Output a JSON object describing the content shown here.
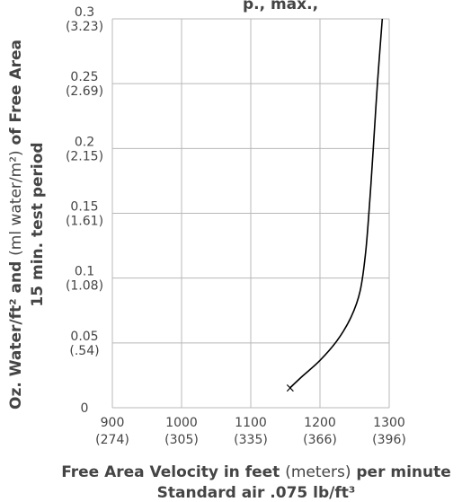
{
  "chart_data": {
    "type": "line",
    "title_fragment": "p., max.,",
    "xlabel": {
      "line1_bold_a": "Free Area Velocity in feet ",
      "line1_light": "(meters)",
      "line1_bold_b": " per minute",
      "line2": "Standard air .075 lb/ft³"
    },
    "ylabel": {
      "line1_bold_a": "Oz. Water/ft² and ",
      "line1_light": "(ml water/m²)",
      "line1_bold_b": " of Free Area",
      "line2": "15 min. test period"
    },
    "xlim": [
      900,
      1300
    ],
    "ylim": [
      0,
      0.3
    ],
    "grid": true,
    "x_ticks": [
      {
        "value": 900,
        "label": "900",
        "sublabel": "(274)"
      },
      {
        "value": 1000,
        "label": "1000",
        "sublabel": "(305)"
      },
      {
        "value": 1100,
        "label": "1100",
        "sublabel": "(335)"
      },
      {
        "value": 1200,
        "label": "1200",
        "sublabel": "(366)"
      },
      {
        "value": 1300,
        "label": "1300",
        "sublabel": "(396)"
      }
    ],
    "y_ticks": [
      {
        "value": 0.3,
        "label": "0.3",
        "sublabel": "(3.23)"
      },
      {
        "value": 0.25,
        "label": "0.25",
        "sublabel": "(2.69)"
      },
      {
        "value": 0.2,
        "label": "0.2",
        "sublabel": "(2.15)"
      },
      {
        "value": 0.15,
        "label": "0.15",
        "sublabel": "(1.61)"
      },
      {
        "value": 0.1,
        "label": "0.1",
        "sublabel": "(1.08)"
      },
      {
        "value": 0.05,
        "label": "0.05",
        "sublabel": "(.54)"
      },
      {
        "value": 0,
        "label": "0",
        "sublabel": ""
      }
    ],
    "series": [
      {
        "x": [
          1157,
          1175,
          1200,
          1225,
          1245,
          1258,
          1266,
          1272,
          1277,
          1283,
          1290
        ],
        "y": [
          0.0155,
          0.0245,
          0.0365,
          0.052,
          0.07,
          0.09,
          0.12,
          0.16,
          0.2,
          0.25,
          0.3
        ]
      }
    ],
    "marker": {
      "x": 1157,
      "y": 0.0155,
      "symbol": "×"
    }
  }
}
